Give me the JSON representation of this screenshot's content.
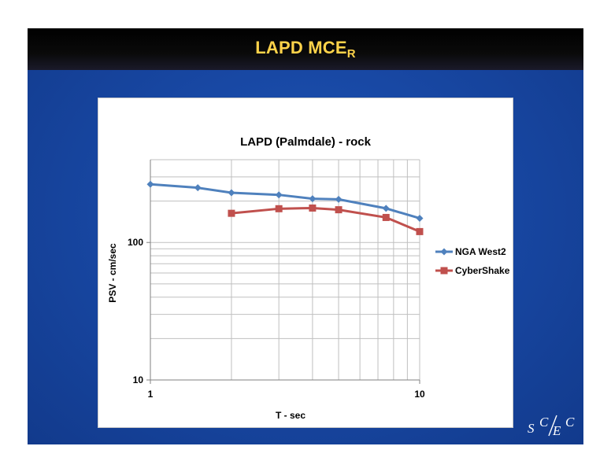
{
  "slide": {
    "title_main": "LAPD MCE",
    "title_sub": "R",
    "logo_text": "SCEC"
  },
  "colors": {
    "slide_bg": "#1a4aa8",
    "title_text": "#ffd34a",
    "series_nga": "#4f81bd",
    "series_cybershake": "#c0504d"
  },
  "chart_data": {
    "type": "line",
    "title": "LAPD (Palmdale) - rock",
    "xlabel": "T - sec",
    "ylabel": "PSV - cm/sec",
    "xscale": "log",
    "yscale": "log",
    "xlim": [
      1,
      10
    ],
    "ylim": [
      10,
      400
    ],
    "x_tick_labels": [
      "1",
      "10"
    ],
    "y_tick_labels": [
      "10",
      "100"
    ],
    "grid": true,
    "legend_position": "right",
    "series": [
      {
        "name": "NGA West2",
        "marker": "diamond",
        "color": "#4f81bd",
        "x": [
          1,
          1.5,
          2,
          3,
          4,
          5,
          7.5,
          10
        ],
        "y": [
          265,
          250,
          230,
          222,
          208,
          206,
          177,
          150
        ]
      },
      {
        "name": "CyberShake",
        "marker": "square",
        "color": "#c0504d",
        "x": [
          2,
          3,
          4,
          5,
          7.5,
          10
        ],
        "y": [
          163,
          176,
          178,
          173,
          152,
          120
        ]
      }
    ]
  }
}
